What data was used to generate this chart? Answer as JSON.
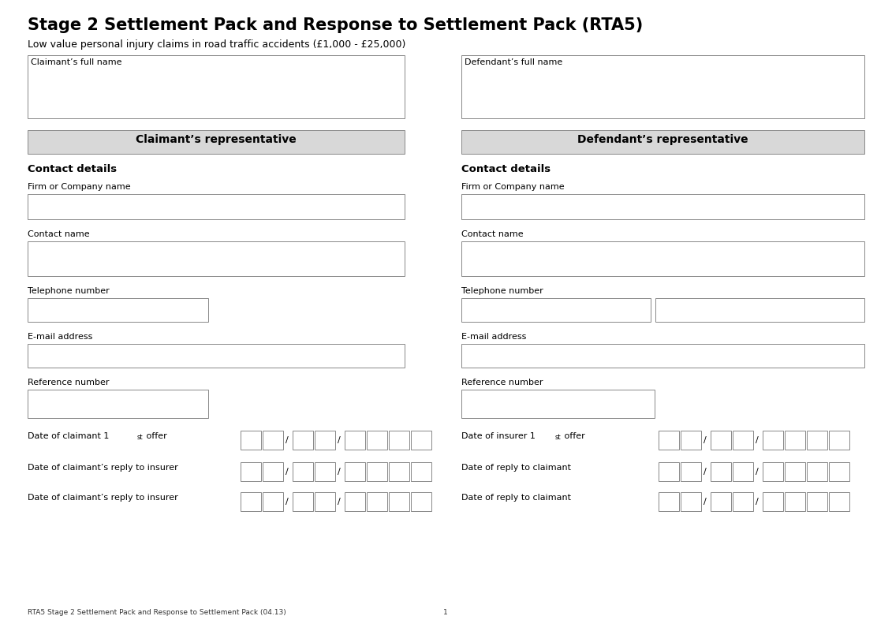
{
  "title": "Stage 2 Settlement Pack and Response to Settlement Pack (RTA5)",
  "subtitle": "Low value personal injury claims in road traffic accidents (£1,000 - £25,000)",
  "footer_left": "RTA5 Stage 2 Settlement Pack and Response to Settlement Pack (04.13)",
  "footer_center": "1",
  "bg_color": "#ffffff",
  "gray_header_bg": "#d8d8d8",
  "box_edge": "#888888",
  "left": {
    "full_name_label": "Claimant’s full name",
    "rep_header": "Claimant’s representative",
    "contact_label": "Contact details",
    "firm_label": "Firm or Company name",
    "contact_name_label": "Contact name",
    "telephone_label": "Telephone number",
    "email_label": "E-mail address",
    "reference_label": "Reference number",
    "date1_label": "Date of claimant 1ˢᵗ offer",
    "date1_plain": "Date of claimant 1",
    "date1_super": "st",
    "date1_after": " offer",
    "date2_label": "Date of claimant’s reply to insurer",
    "date3_label": "Date of claimant’s reply to insurer"
  },
  "right": {
    "full_name_label": "Defendant’s full name",
    "rep_header": "Defendant’s representative",
    "contact_label": "Contact details",
    "firm_label": "Firm or Company name",
    "contact_name_label": "Contact name",
    "telephone_label": "Telephone number",
    "email_label": "E-mail address",
    "reference_label": "Reference number",
    "date1_plain": "Date of insurer 1",
    "date1_super": "st",
    "date1_after": " offer",
    "date2_label": "Date of reply to claimant",
    "date3_label": "Date of reply to claimant"
  }
}
